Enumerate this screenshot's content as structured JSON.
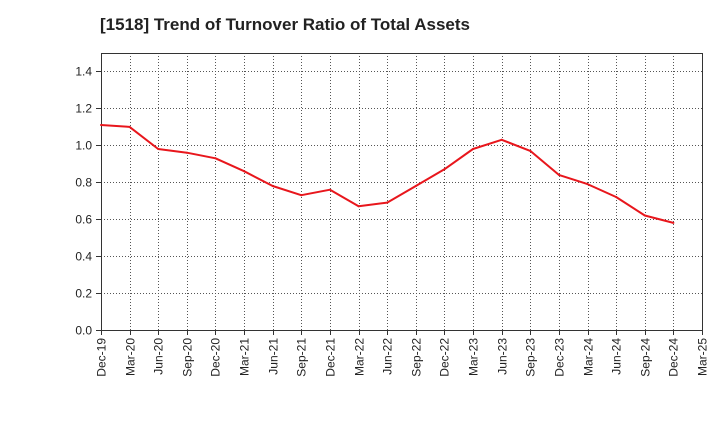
{
  "chart_data": {
    "type": "line",
    "title": "[1518]  Trend of Turnover Ratio of Total Assets",
    "xlabel": "",
    "ylabel": "",
    "x_ticks": [
      "Dec-19",
      "Mar-20",
      "Jun-20",
      "Sep-20",
      "Dec-20",
      "Mar-21",
      "Jun-21",
      "Sep-21",
      "Dec-21",
      "Mar-22",
      "Jun-22",
      "Sep-22",
      "Dec-22",
      "Mar-23",
      "Jun-23",
      "Sep-23",
      "Dec-23",
      "Mar-24",
      "Jun-24",
      "Sep-24",
      "Dec-24",
      "Mar-25"
    ],
    "x": [
      "Dec-19",
      "Mar-20",
      "Jun-20",
      "Sep-20",
      "Dec-20",
      "Mar-21",
      "Jun-21",
      "Sep-21",
      "Dec-21",
      "Mar-22",
      "Jun-22",
      "Sep-22",
      "Dec-22",
      "Mar-23",
      "Jun-23",
      "Sep-23",
      "Dec-23",
      "Mar-24",
      "Jun-24",
      "Sep-24",
      "Dec-24"
    ],
    "series": [
      {
        "values": [
          1.11,
          1.1,
          0.98,
          0.96,
          0.93,
          0.86,
          0.78,
          0.73,
          0.76,
          0.67,
          0.69,
          0.78,
          0.87,
          0.98,
          1.03,
          0.97,
          0.84,
          0.79,
          0.72,
          0.62,
          0.58
        ]
      }
    ],
    "ylim": [
      0,
      1.5
    ],
    "y_ticks": [
      0.0,
      0.2,
      0.4,
      0.6,
      0.8,
      1.0,
      1.2,
      1.4
    ],
    "grid": true,
    "grid_style": "dotted",
    "line_color": "#e8161c",
    "axis_color": "#333333",
    "grid_color": "#555555"
  }
}
